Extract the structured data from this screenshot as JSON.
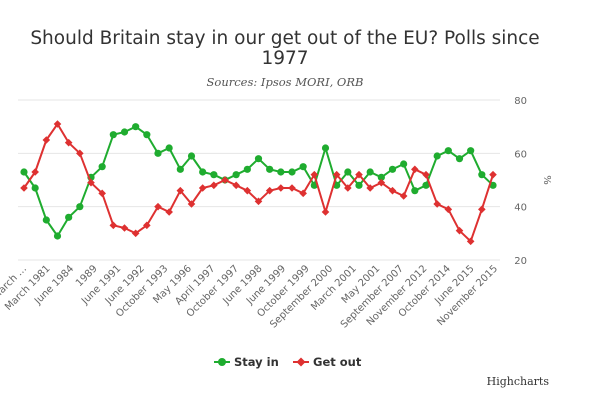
{
  "chart_data": {
    "type": "line",
    "title_line1": "Should Britain stay in our get out of the EU? Polls since",
    "title_line2": "1977",
    "subtitle": "Sources: Ipsos MORI, ORB",
    "ylabel": "%",
    "ylim": [
      20,
      80
    ],
    "yticks": [
      "20",
      "40",
      "60",
      "80"
    ],
    "grid": true,
    "legend_position": "bottom-center",
    "credit": "Highcharts",
    "x_labels": [
      "March …",
      "March 1981",
      "June 1984",
      "1989",
      "June 1991",
      "June 1992",
      "October 1993",
      "May 1996",
      "April 1997",
      "October 1997",
      "June 1998",
      "June 1999",
      "October 1999",
      "September 2000",
      "March 2001",
      "May 2001",
      "September 2007",
      "November 2012",
      "October 2014",
      "June 2015",
      "November 2015"
    ],
    "series": [
      {
        "name": "Stay in",
        "color": "#1fac2f",
        "values": [
          53,
          47,
          35,
          29,
          36,
          40,
          51,
          55,
          67,
          68,
          70,
          67,
          60,
          62,
          54,
          59,
          53,
          52,
          50,
          52,
          54,
          58,
          54,
          53,
          53,
          55,
          48,
          62,
          48,
          53,
          48,
          53,
          51,
          54,
          56,
          46,
          48,
          59,
          61,
          58,
          61,
          52,
          48
        ]
      },
      {
        "name": "Get out",
        "color": "#de3131",
        "values": [
          47,
          53,
          65,
          71,
          64,
          60,
          49,
          45,
          33,
          32,
          30,
          33,
          40,
          38,
          46,
          41,
          47,
          48,
          50,
          48,
          46,
          42,
          46,
          47,
          47,
          45,
          52,
          38,
          52,
          47,
          52,
          47,
          49,
          46,
          44,
          54,
          52,
          41,
          39,
          31,
          27,
          39,
          52
        ]
      }
    ]
  }
}
